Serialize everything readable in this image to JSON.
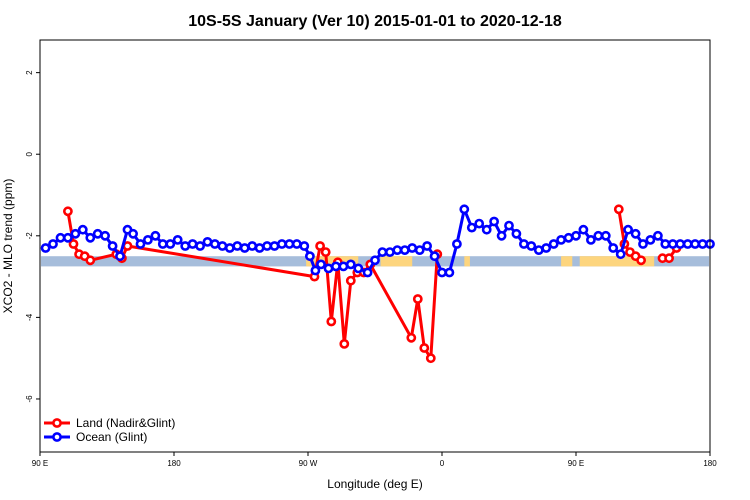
{
  "chart_data": {
    "type": "line",
    "title": "10S-5S January (Ver 10)   2015-01-01 to 2020-12-18",
    "xlabel": "Longitude (deg E)",
    "ylabel": "XCO2 - MLO trend (ppm)",
    "xlim": [
      90,
      450
    ],
    "ylim": [
      -7.3,
      2.8
    ],
    "x_ticks": [
      {
        "value": 90,
        "label": "90 E"
      },
      {
        "value": 162,
        "label": "180"
      },
      {
        "value": 234,
        "label": "90 W"
      },
      {
        "value": 306,
        "label": "0"
      },
      {
        "value": 378,
        "label": "90 E"
      },
      {
        "value": 450,
        "label": "180"
      }
    ],
    "y_ticks": [
      {
        "value": -6,
        "label": "-6"
      },
      {
        "value": -4,
        "label": "-4"
      },
      {
        "value": -2,
        "label": "-2"
      },
      {
        "value": 0,
        "label": "0"
      },
      {
        "value": 2,
        "label": "2"
      }
    ],
    "band": {
      "ymin": -2.75,
      "ymax": -2.5,
      "ocean_color": "#a6bddb",
      "land_color": "#fdd57e",
      "land_ranges": [
        [
          233,
          261
        ],
        [
          273,
          290
        ],
        [
          318,
          321
        ],
        [
          370,
          376
        ],
        [
          380,
          420
        ]
      ]
    },
    "series": [
      {
        "name": "Land (Nadir&Glint)",
        "color": "#ff0000",
        "x": [
          105,
          108,
          111,
          114,
          117,
          131,
          134,
          137,
          237.5,
          240.5,
          243.5,
          246.5,
          250,
          253.5,
          257,
          260.5,
          264,
          267.5,
          289.5,
          293,
          296.5,
          300,
          303.5,
          306.5,
          401,
          404,
          407,
          410,
          413,
          417,
          424.5,
          428,
          432,
          435.5,
          439,
          442,
          445,
          448,
          451,
          454
        ],
        "y": [
          -1.4,
          -2.2,
          -2.45,
          -2.5,
          -2.6,
          -2.45,
          -2.55,
          -2.25,
          -3,
          -2.25,
          -2.4,
          -4.1,
          -2.65,
          -4.65,
          -3.1,
          -2.9,
          -2.9,
          -2.7,
          -4.5,
          -3.55,
          -4.75,
          -5,
          -2.45,
          null,
          -1.35,
          -2.2,
          -2.4,
          -2.5,
          -2.6,
          null,
          -2.55,
          -2.55,
          -2.3,
          null,
          null,
          null,
          null,
          null,
          null,
          null
        ]
      },
      {
        "name": "Ocean (Glint)",
        "color": "#0000ff",
        "x": [
          93,
          97,
          101,
          105,
          109,
          113,
          117,
          121,
          125,
          129,
          133,
          137,
          140,
          144,
          148,
          152,
          156,
          160,
          164,
          168,
          172,
          176,
          180,
          184,
          188,
          192,
          196,
          200,
          204,
          208,
          212,
          216,
          220,
          224,
          228,
          232,
          235,
          238,
          241,
          245,
          249,
          253,
          257,
          261,
          266,
          270,
          274,
          278,
          282,
          286,
          290,
          294,
          298,
          302,
          306,
          310,
          314,
          318,
          322,
          326,
          330,
          334,
          338,
          342,
          346,
          350,
          354,
          358,
          362,
          366,
          370,
          374,
          378,
          382,
          386,
          390,
          394,
          398,
          402,
          406,
          410,
          414,
          418,
          422,
          426,
          430,
          434,
          438,
          442,
          446,
          450
        ],
        "y": [
          -2.3,
          -2.2,
          -2.05,
          -2.05,
          -1.95,
          -1.85,
          -2.05,
          -1.95,
          -2.0,
          -2.25,
          -2.5,
          -1.85,
          -1.95,
          -2.2,
          -2.1,
          -2.0,
          -2.2,
          -2.2,
          -2.1,
          -2.25,
          -2.2,
          -2.25,
          -2.15,
          -2.2,
          -2.25,
          -2.3,
          -2.25,
          -2.3,
          -2.25,
          -2.3,
          -2.25,
          -2.25,
          -2.2,
          -2.2,
          -2.2,
          -2.25,
          -2.5,
          -2.85,
          -2.7,
          -2.8,
          -2.75,
          -2.75,
          -2.7,
          -2.8,
          -2.9,
          -2.6,
          -2.4,
          -2.4,
          -2.35,
          -2.35,
          -2.3,
          -2.35,
          -2.25,
          -2.5,
          -2.9,
          -2.9,
          -2.2,
          -1.35,
          -1.8,
          -1.7,
          -1.85,
          -1.65,
          -2.0,
          -1.75,
          -1.95,
          -2.2,
          -2.25,
          -2.35,
          -2.3,
          -2.2,
          -2.1,
          -2.05,
          -2.0,
          -1.85,
          -2.1,
          -2.0,
          -2.0,
          -2.3,
          -2.45,
          -1.85,
          -1.95,
          -2.2,
          -2.1,
          -2.0,
          -2.2,
          -2.2,
          -2.2,
          -2.2,
          -2.2,
          -2.2,
          -2.2
        ]
      }
    ],
    "legend": {
      "position": "bottom-left"
    }
  }
}
